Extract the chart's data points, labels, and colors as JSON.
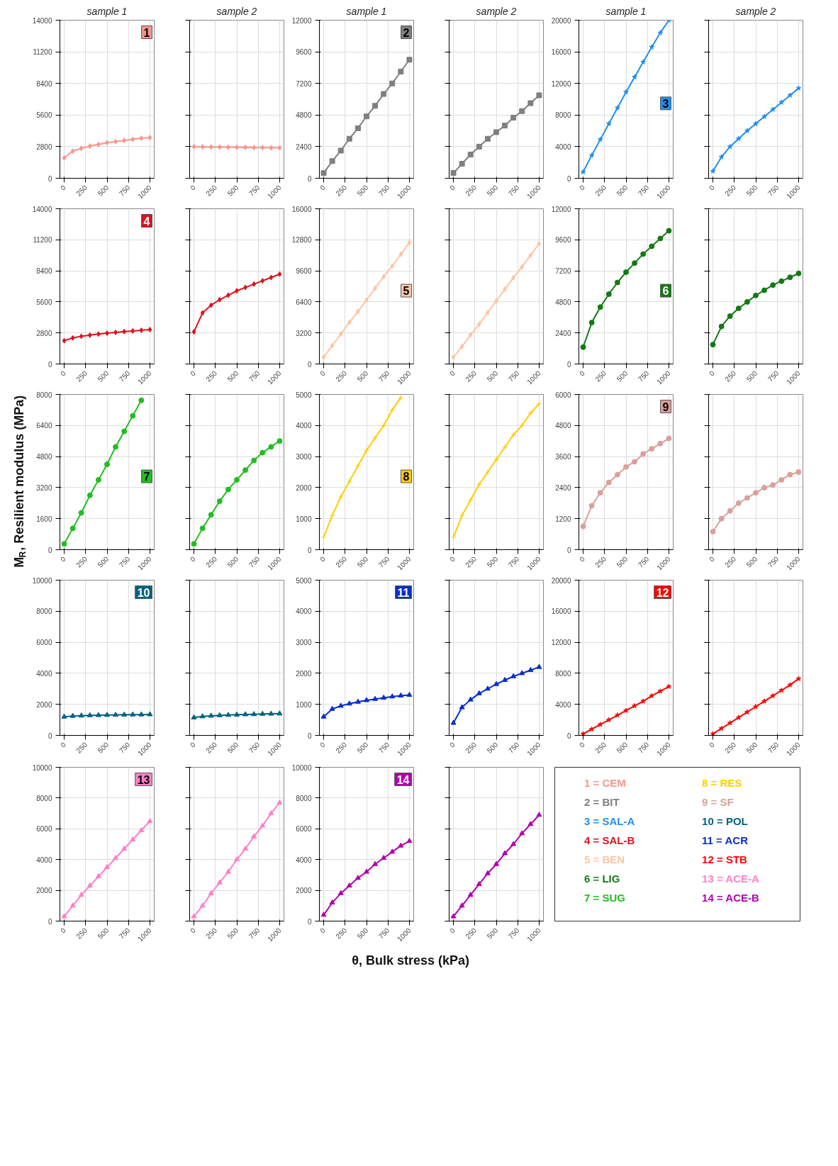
{
  "chart_data": [
    {
      "type": "line",
      "subtitle": "sample 1",
      "title": "1",
      "x": [
        0,
        100,
        200,
        300,
        400,
        500,
        600,
        700,
        800,
        900,
        1000
      ],
      "xlim": [
        -50,
        1050
      ],
      "xticks": [
        0,
        250,
        500,
        750,
        1000
      ],
      "ylim": [
        0,
        14000
      ],
      "yticks": [
        0,
        2800,
        5600,
        8400,
        11200,
        14000
      ],
      "grid": true,
      "marker": "diamond",
      "series": [
        {
          "color": "#f7958f",
          "values": [
            1800,
            2400,
            2650,
            2850,
            3000,
            3150,
            3250,
            3350,
            3450,
            3550,
            3600
          ]
        }
      ]
    },
    {
      "type": "line",
      "subtitle": "sample 2",
      "x": [
        0,
        100,
        200,
        300,
        400,
        500,
        600,
        700,
        800,
        900,
        1000
      ],
      "xlim": [
        -50,
        1050
      ],
      "xticks": [
        0,
        250,
        500,
        750,
        1000
      ],
      "ylim": [
        0,
        14000
      ],
      "yticks": [
        0,
        2800,
        5600,
        8400,
        11200,
        14000
      ],
      "grid": true,
      "marker": "diamond",
      "tick_labels": "x",
      "series": [
        {
          "color": "#f7958f",
          "values": [
            2800,
            2780,
            2770,
            2760,
            2750,
            2740,
            2730,
            2720,
            2710,
            2700,
            2700
          ]
        }
      ]
    },
    {
      "type": "line",
      "subtitle": "sample 1",
      "title": "2",
      "x": [
        0,
        100,
        200,
        300,
        400,
        500,
        600,
        700,
        800,
        900,
        1000
      ],
      "xlim": [
        -50,
        1050
      ],
      "xticks": [
        0,
        250,
        500,
        750,
        1000
      ],
      "ylim": [
        0,
        12000
      ],
      "yticks": [
        0,
        2400,
        4800,
        7200,
        9600,
        12000
      ],
      "grid": true,
      "marker": "square",
      "series": [
        {
          "color": "#7f7f7f",
          "values": [
            400,
            1300,
            2100,
            3000,
            3800,
            4700,
            5500,
            6400,
            7200,
            8100,
            9000
          ]
        }
      ]
    },
    {
      "type": "line",
      "subtitle": "sample 2",
      "x": [
        0,
        100,
        200,
        300,
        400,
        500,
        600,
        700,
        800,
        900,
        1000
      ],
      "xlim": [
        -50,
        1050
      ],
      "xticks": [
        0,
        250,
        500,
        750,
        1000
      ],
      "ylim": [
        0,
        12000
      ],
      "yticks": [
        0,
        2400,
        4800,
        7200,
        9600,
        12000
      ],
      "grid": true,
      "marker": "square",
      "tick_labels": "x",
      "series": [
        {
          "color": "#7f7f7f",
          "values": [
            400,
            1100,
            1800,
            2400,
            3000,
            3500,
            4000,
            4600,
            5100,
            5700,
            6300
          ]
        }
      ]
    },
    {
      "type": "line",
      "subtitle": "sample 1",
      "title": "3",
      "x": [
        0,
        100,
        200,
        300,
        400,
        500,
        600,
        700,
        800,
        900,
        1000
      ],
      "xlim": [
        -50,
        1050
      ],
      "xticks": [
        0,
        250,
        500,
        750,
        1000
      ],
      "ylim": [
        0,
        20000
      ],
      "yticks": [
        0,
        4000,
        8000,
        12000,
        16000,
        20000
      ],
      "grid": true,
      "marker": "star",
      "series": [
        {
          "color": "#1e8ff0",
          "values": [
            800,
            2900,
            4900,
            6900,
            8900,
            10900,
            12800,
            14700,
            16600,
            18400,
            20000
          ]
        }
      ]
    },
    {
      "type": "line",
      "subtitle": "sample 2",
      "x": [
        0,
        100,
        200,
        300,
        400,
        500,
        600,
        700,
        800,
        900,
        1000
      ],
      "xlim": [
        -50,
        1050
      ],
      "xticks": [
        0,
        250,
        500,
        750,
        1000
      ],
      "ylim": [
        0,
        20000
      ],
      "yticks": [
        0,
        4000,
        8000,
        12000,
        16000,
        20000
      ],
      "grid": true,
      "marker": "star",
      "tick_labels": "x",
      "series": [
        {
          "color": "#1e8ff0",
          "values": [
            900,
            2700,
            4000,
            5000,
            6000,
            6900,
            7800,
            8700,
            9600,
            10500,
            11400
          ]
        }
      ]
    },
    {
      "type": "line",
      "title": "4",
      "x": [
        0,
        100,
        200,
        300,
        400,
        500,
        600,
        700,
        800,
        900,
        1000
      ],
      "xlim": [
        -50,
        1050
      ],
      "xticks": [
        0,
        250,
        500,
        750,
        1000
      ],
      "ylim": [
        0,
        14000
      ],
      "yticks": [
        0,
        2800,
        5600,
        8400,
        11200,
        14000
      ],
      "grid": true,
      "marker": "diamond",
      "series": [
        {
          "color": "#e0101e",
          "values": [
            2100,
            2350,
            2500,
            2600,
            2700,
            2780,
            2850,
            2920,
            2980,
            3040,
            3100
          ]
        }
      ]
    },
    {
      "type": "line",
      "x": [
        0,
        100,
        200,
        300,
        400,
        500,
        600,
        700,
        800,
        900,
        1000
      ],
      "xlim": [
        -50,
        1050
      ],
      "xticks": [
        0,
        250,
        500,
        750,
        1000
      ],
      "ylim": [
        0,
        14000
      ],
      "yticks": [
        0,
        2800,
        5600,
        8400,
        11200,
        14000
      ],
      "grid": true,
      "marker": "diamond",
      "tick_labels": "x",
      "series": [
        {
          "color": "#e0101e",
          "values": [
            2900,
            4600,
            5300,
            5800,
            6200,
            6600,
            6900,
            7200,
            7500,
            7800,
            8100
          ]
        }
      ]
    },
    {
      "type": "line",
      "title": "5",
      "x": [
        0,
        100,
        200,
        300,
        400,
        500,
        600,
        700,
        800,
        900,
        1000
      ],
      "xlim": [
        -50,
        1050
      ],
      "xticks": [
        0,
        250,
        500,
        750,
        1000
      ],
      "ylim": [
        0,
        16000
      ],
      "yticks": [
        0,
        3200,
        6400,
        9600,
        12800,
        16000
      ],
      "grid": true,
      "marker": "diamond",
      "series": [
        {
          "color": "#fcc5a5",
          "values": [
            700,
            1900,
            3100,
            4300,
            5400,
            6600,
            7800,
            9000,
            10100,
            11300,
            12500
          ]
        }
      ]
    },
    {
      "type": "line",
      "x": [
        0,
        100,
        200,
        300,
        400,
        500,
        600,
        700,
        800,
        900,
        1000
      ],
      "xlim": [
        -50,
        1050
      ],
      "xticks": [
        0,
        250,
        500,
        750,
        1000
      ],
      "ylim": [
        0,
        16000
      ],
      "yticks": [
        0,
        3200,
        6400,
        9600,
        12800,
        16000
      ],
      "grid": true,
      "marker": "diamond",
      "tick_labels": "x",
      "series": [
        {
          "color": "#fcc5a5",
          "values": [
            700,
            1800,
            3000,
            4100,
            5300,
            6500,
            7700,
            8900,
            10000,
            11200,
            12400
          ]
        }
      ]
    },
    {
      "type": "line",
      "title": "6",
      "x": [
        0,
        100,
        200,
        300,
        400,
        500,
        600,
        700,
        800,
        900,
        1000
      ],
      "xlim": [
        -50,
        1050
      ],
      "xticks": [
        0,
        250,
        500,
        750,
        1000
      ],
      "ylim": [
        0,
        12000
      ],
      "yticks": [
        0,
        2400,
        4800,
        7200,
        9600,
        12000
      ],
      "grid": true,
      "marker": "circle",
      "series": [
        {
          "color": "#137a13",
          "values": [
            1300,
            3200,
            4400,
            5400,
            6300,
            7100,
            7800,
            8500,
            9100,
            9700,
            10300
          ]
        }
      ]
    },
    {
      "type": "line",
      "x": [
        0,
        100,
        200,
        300,
        400,
        500,
        600,
        700,
        800,
        900,
        1000
      ],
      "xlim": [
        -50,
        1050
      ],
      "xticks": [
        0,
        250,
        500,
        750,
        1000
      ],
      "ylim": [
        0,
        12000
      ],
      "yticks": [
        0,
        2400,
        4800,
        7200,
        9600,
        12000
      ],
      "grid": true,
      "marker": "circle",
      "tick_labels": "x",
      "series": [
        {
          "color": "#137a13",
          "values": [
            1500,
            2900,
            3700,
            4300,
            4800,
            5300,
            5700,
            6100,
            6400,
            6700,
            7000
          ]
        }
      ]
    },
    {
      "type": "line",
      "title": "7",
      "x": [
        0,
        100,
        200,
        300,
        400,
        500,
        600,
        700,
        800,
        900
      ],
      "xlim": [
        -50,
        1050
      ],
      "xticks": [
        0,
        250,
        500,
        750,
        1000
      ],
      "ylim": [
        0,
        8000
      ],
      "yticks": [
        0,
        1600,
        3200,
        4800,
        6400,
        8000
      ],
      "grid": true,
      "marker": "circle",
      "series": [
        {
          "color": "#1fbf1f",
          "values": [
            300,
            1100,
            1900,
            2800,
            3600,
            4400,
            5300,
            6100,
            6900,
            7700
          ]
        }
      ]
    },
    {
      "type": "line",
      "x": [
        0,
        100,
        200,
        300,
        400,
        500,
        600,
        700,
        800,
        900,
        1000
      ],
      "xlim": [
        -50,
        1050
      ],
      "xticks": [
        0,
        250,
        500,
        750,
        1000
      ],
      "ylim": [
        0,
        8000
      ],
      "yticks": [
        0,
        1600,
        3200,
        4800,
        6400,
        8000
      ],
      "grid": true,
      "marker": "circle",
      "tick_labels": "x",
      "series": [
        {
          "color": "#1fbf1f",
          "values": [
            300,
            1100,
            1800,
            2500,
            3100,
            3600,
            4100,
            4600,
            5000,
            5300,
            5600
          ]
        }
      ]
    },
    {
      "type": "line",
      "title": "8",
      "x": [
        0,
        100,
        200,
        300,
        400,
        500,
        600,
        700,
        800,
        900
      ],
      "xlim": [
        -50,
        1050
      ],
      "xticks": [
        0,
        250,
        500,
        750,
        1000
      ],
      "ylim": [
        0,
        5000
      ],
      "yticks": [
        0,
        1000,
        2000,
        3000,
        4000,
        5000
      ],
      "grid": true,
      "marker": "cross",
      "series": [
        {
          "color": "#ffcc00",
          "values": [
            400,
            1100,
            1700,
            2200,
            2700,
            3200,
            3600,
            4000,
            4500,
            4900
          ]
        }
      ]
    },
    {
      "type": "line",
      "x": [
        0,
        100,
        200,
        300,
        400,
        500,
        600,
        700,
        800,
        900,
        1000
      ],
      "xlim": [
        -50,
        1050
      ],
      "xticks": [
        0,
        250,
        500,
        750,
        1000
      ],
      "ylim": [
        0,
        5000
      ],
      "yticks": [
        0,
        1000,
        2000,
        3000,
        4000,
        5000
      ],
      "grid": true,
      "marker": "cross",
      "tick_labels": "x",
      "series": [
        {
          "color": "#ffcc00",
          "values": [
            400,
            1100,
            1600,
            2100,
            2500,
            2900,
            3300,
            3700,
            4000,
            4400,
            4700
          ]
        }
      ]
    },
    {
      "type": "line",
      "title": "9",
      "x": [
        0,
        100,
        200,
        300,
        400,
        500,
        600,
        700,
        800,
        900,
        1000
      ],
      "xlim": [
        -50,
        1050
      ],
      "xticks": [
        0,
        250,
        500,
        750,
        1000
      ],
      "ylim": [
        0,
        6000
      ],
      "yticks": [
        0,
        1200,
        2400,
        3600,
        4800,
        6000
      ],
      "grid": true,
      "marker": "circle",
      "series": [
        {
          "color": "#d9a09c",
          "values": [
            900,
            1700,
            2200,
            2600,
            2900,
            3200,
            3400,
            3700,
            3900,
            4100,
            4300
          ]
        }
      ]
    },
    {
      "type": "line",
      "x": [
        0,
        100,
        200,
        300,
        400,
        500,
        600,
        700,
        800,
        900,
        1000
      ],
      "xlim": [
        -50,
        1050
      ],
      "xticks": [
        0,
        250,
        500,
        750,
        1000
      ],
      "ylim": [
        0,
        6000
      ],
      "yticks": [
        0,
        1200,
        2400,
        3600,
        4800,
        6000
      ],
      "grid": true,
      "marker": "circle",
      "tick_labels": "x",
      "series": [
        {
          "color": "#d9a09c",
          "values": [
            700,
            1200,
            1500,
            1800,
            2000,
            2200,
            2400,
            2500,
            2700,
            2900,
            3000
          ]
        }
      ]
    },
    {
      "type": "line",
      "title": "10",
      "x": [
        0,
        100,
        200,
        300,
        400,
        500,
        600,
        700,
        800,
        900,
        1000
      ],
      "xlim": [
        -50,
        1050
      ],
      "xticks": [
        0,
        250,
        500,
        750,
        1000
      ],
      "ylim": [
        0,
        10000
      ],
      "yticks": [
        0,
        2000,
        4000,
        6000,
        8000,
        10000
      ],
      "grid": true,
      "marker": "triangle",
      "series": [
        {
          "color": "#006380",
          "values": [
            1200,
            1250,
            1270,
            1290,
            1300,
            1310,
            1320,
            1330,
            1340,
            1340,
            1350
          ]
        }
      ]
    },
    {
      "type": "line",
      "x": [
        0,
        100,
        200,
        300,
        400,
        500,
        600,
        700,
        800,
        900,
        1000
      ],
      "xlim": [
        -50,
        1050
      ],
      "xticks": [
        0,
        250,
        500,
        750,
        1000
      ],
      "ylim": [
        0,
        10000
      ],
      "yticks": [
        0,
        2000,
        4000,
        6000,
        8000,
        10000
      ],
      "grid": true,
      "marker": "triangle",
      "tick_labels": "x",
      "series": [
        {
          "color": "#006380",
          "values": [
            1150,
            1220,
            1260,
            1290,
            1310,
            1330,
            1350,
            1360,
            1380,
            1390,
            1400
          ]
        }
      ]
    },
    {
      "type": "line",
      "title": "11",
      "x": [
        0,
        100,
        200,
        300,
        400,
        500,
        600,
        700,
        800,
        900,
        1000
      ],
      "xlim": [
        -50,
        1050
      ],
      "xticks": [
        0,
        250,
        500,
        750,
        1000
      ],
      "ylim": [
        0,
        5000
      ],
      "yticks": [
        0,
        1000,
        2000,
        3000,
        4000,
        5000
      ],
      "grid": true,
      "marker": "triangle",
      "series": [
        {
          "color": "#0a2ecc",
          "values": [
            600,
            850,
            950,
            1020,
            1080,
            1130,
            1170,
            1210,
            1250,
            1280,
            1300
          ]
        }
      ]
    },
    {
      "type": "line",
      "x": [
        0,
        100,
        200,
        300,
        400,
        500,
        600,
        700,
        800,
        900,
        1000
      ],
      "xlim": [
        -50,
        1050
      ],
      "xticks": [
        0,
        250,
        500,
        750,
        1000
      ],
      "ylim": [
        0,
        5000
      ],
      "yticks": [
        0,
        1000,
        2000,
        3000,
        4000,
        5000
      ],
      "grid": true,
      "marker": "triangle",
      "tick_labels": "x",
      "series": [
        {
          "color": "#0a2ecc",
          "values": [
            400,
            900,
            1150,
            1350,
            1500,
            1650,
            1780,
            1900,
            2000,
            2100,
            2200
          ]
        }
      ]
    },
    {
      "type": "line",
      "title": "12",
      "x": [
        0,
        100,
        200,
        300,
        400,
        500,
        600,
        700,
        800,
        900,
        1000
      ],
      "xlim": [
        -50,
        1050
      ],
      "xticks": [
        0,
        250,
        500,
        750,
        1000
      ],
      "ylim": [
        0,
        20000
      ],
      "yticks": [
        0,
        4000,
        8000,
        12000,
        16000,
        20000
      ],
      "grid": true,
      "marker": "star",
      "series": [
        {
          "color": "#ff0000",
          "values": [
            200,
            800,
            1400,
            2000,
            2600,
            3200,
            3800,
            4400,
            5100,
            5700,
            6300
          ]
        }
      ]
    },
    {
      "type": "line",
      "x": [
        0,
        100,
        200,
        300,
        400,
        500,
        600,
        700,
        800,
        900,
        1000
      ],
      "xlim": [
        -50,
        1050
      ],
      "xticks": [
        0,
        250,
        500,
        750,
        1000
      ],
      "ylim": [
        0,
        20000
      ],
      "yticks": [
        0,
        4000,
        8000,
        12000,
        16000,
        20000
      ],
      "grid": true,
      "marker": "star",
      "tick_labels": "x",
      "series": [
        {
          "color": "#ff0000",
          "values": [
            200,
            900,
            1600,
            2300,
            3000,
            3700,
            4400,
            5100,
            5800,
            6500,
            7300
          ]
        }
      ]
    },
    {
      "type": "line",
      "title": "13",
      "x": [
        0,
        100,
        200,
        300,
        400,
        500,
        600,
        700,
        800,
        900,
        1000
      ],
      "xlim": [
        -50,
        1050
      ],
      "xticks": [
        0,
        250,
        500,
        750,
        1000
      ],
      "ylim": [
        0,
        10000
      ],
      "yticks": [
        0,
        2000,
        4000,
        6000,
        8000,
        10000
      ],
      "grid": true,
      "marker": "triangle",
      "series": [
        {
          "color": "#ff80c8",
          "values": [
            300,
            1000,
            1700,
            2300,
            2900,
            3500,
            4100,
            4700,
            5300,
            5900,
            6500
          ]
        }
      ]
    },
    {
      "type": "line",
      "x": [
        0,
        100,
        200,
        300,
        400,
        500,
        600,
        700,
        800,
        900,
        1000
      ],
      "xlim": [
        -50,
        1050
      ],
      "xticks": [
        0,
        250,
        500,
        750,
        1000
      ],
      "ylim": [
        0,
        10000
      ],
      "yticks": [
        0,
        2000,
        4000,
        6000,
        8000,
        10000
      ],
      "grid": true,
      "marker": "triangle",
      "tick_labels": "x",
      "series": [
        {
          "color": "#ff80c8",
          "values": [
            300,
            1000,
            1800,
            2500,
            3200,
            4000,
            4700,
            5500,
            6200,
            7000,
            7700
          ]
        }
      ]
    },
    {
      "type": "line",
      "title": "14",
      "x": [
        0,
        100,
        200,
        300,
        400,
        500,
        600,
        700,
        800,
        900,
        1000
      ],
      "xlim": [
        -50,
        1050
      ],
      "xticks": [
        0,
        250,
        500,
        750,
        1000
      ],
      "ylim": [
        0,
        10000
      ],
      "yticks": [
        0,
        2000,
        4000,
        6000,
        8000,
        10000
      ],
      "grid": true,
      "marker": "triangle",
      "series": [
        {
          "color": "#b000b0",
          "values": [
            400,
            1200,
            1800,
            2300,
            2800,
            3200,
            3700,
            4100,
            4500,
            4900,
            5200
          ]
        }
      ]
    },
    {
      "type": "line",
      "x": [
        0,
        100,
        200,
        300,
        400,
        500,
        600,
        700,
        800,
        900,
        1000
      ],
      "xlim": [
        -50,
        1050
      ],
      "xticks": [
        0,
        250,
        500,
        750,
        1000
      ],
      "ylim": [
        0,
        10000
      ],
      "yticks": [
        0,
        2000,
        4000,
        6000,
        8000,
        10000
      ],
      "grid": true,
      "marker": "triangle",
      "tick_labels": "x",
      "series": [
        {
          "color": "#b000b0",
          "values": [
            300,
            1000,
            1700,
            2400,
            3100,
            3700,
            4400,
            5000,
            5700,
            6300,
            6900
          ]
        }
      ]
    },
    {
      "type": "other",
      "xlabel": "θ, Bulk stress (kPa)",
      "ylabel": "M$_{R}$, Resilient modulus (MPa)",
      "categories": [
        "1 = CEM",
        "2 = BIT",
        "3 = SAL-A",
        "4 = SAL-B",
        "5 = BEN",
        "6 = LIG",
        "7 = SUG",
        "8 = RES",
        "9 = SF",
        "10 = POL",
        "11 = ACR",
        "12 = STB",
        "13 = ACE-A",
        "14 = ACE-B"
      ],
      "colors": [
        "#f7958f",
        "#7f7f7f",
        "#1e8ff0",
        "#e0101e",
        "#fcc5a5",
        "#137a13",
        "#1fbf1f",
        "#ffcc00",
        "#d9a09c",
        "#006380",
        "#0a2ecc",
        "#ff0000",
        "#ff80c8",
        "#b000b0"
      ]
    }
  ]
}
